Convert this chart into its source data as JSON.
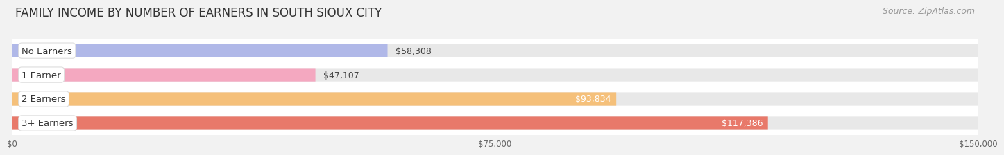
{
  "title": "FAMILY INCOME BY NUMBER OF EARNERS IN SOUTH SIOUX CITY",
  "source": "Source: ZipAtlas.com",
  "categories": [
    "No Earners",
    "1 Earner",
    "2 Earners",
    "3+ Earners"
  ],
  "values": [
    58308,
    47107,
    93834,
    117386
  ],
  "bar_colors": [
    "#b0b8e8",
    "#f4a8c0",
    "#f5c07a",
    "#e8796a"
  ],
  "value_labels": [
    "$58,308",
    "$47,107",
    "$93,834",
    "$117,386"
  ],
  "value_inside": [
    false,
    false,
    true,
    true
  ],
  "xlim": [
    0,
    150000
  ],
  "xticks": [
    0,
    75000,
    150000
  ],
  "xtick_labels": [
    "$0",
    "$75,000",
    "$150,000"
  ],
  "background_color": "#f2f2f2",
  "row_bg_color": "#ffffff",
  "bar_track_color": "#e8e8e8",
  "title_fontsize": 12,
  "source_fontsize": 9,
  "label_fontsize": 9.5,
  "value_fontsize": 9
}
